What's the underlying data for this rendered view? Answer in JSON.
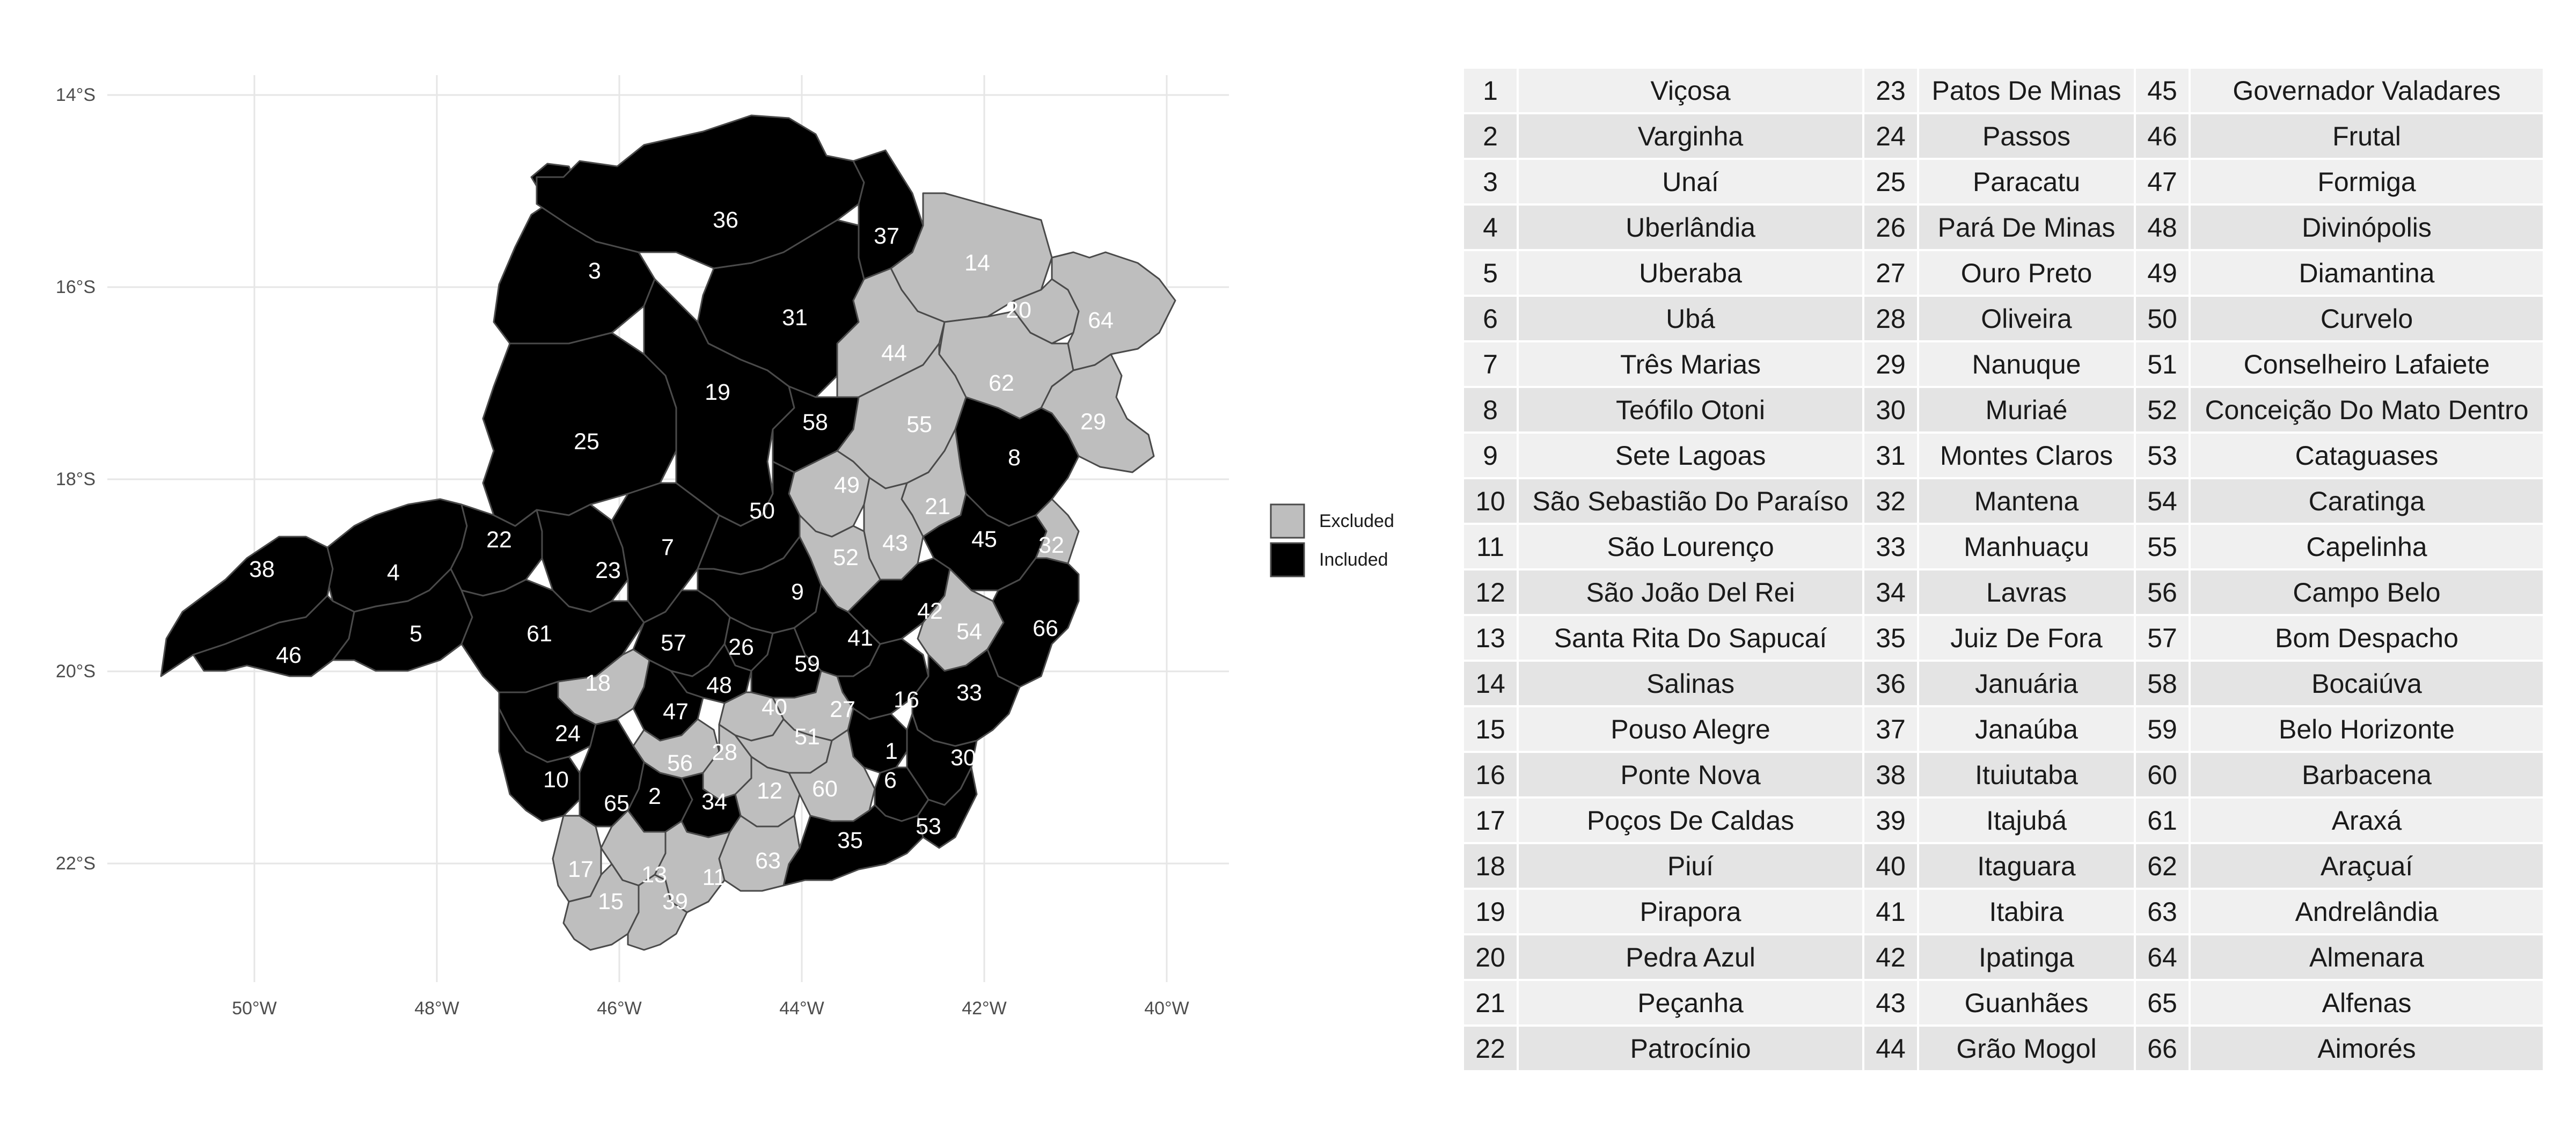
{
  "map": {
    "y_axis_labels": [
      "14°S",
      "16°S",
      "18°S",
      "20°S",
      "22°S"
    ],
    "x_axis_labels": [
      "50°W",
      "48°W",
      "46°W",
      "44°W",
      "42°W",
      "40°W"
    ],
    "legend": [
      {
        "label": "Excluded",
        "color": "#bebebe"
      },
      {
        "label": "Included",
        "color": "#000000"
      }
    ],
    "included_regions": [
      "1",
      "2",
      "3",
      "4",
      "5",
      "6",
      "7",
      "8",
      "9",
      "10",
      "16",
      "19",
      "22",
      "23",
      "24",
      "25",
      "26",
      "30",
      "31",
      "33",
      "34",
      "35",
      "36",
      "37",
      "38",
      "41",
      "42",
      "45",
      "46",
      "47",
      "48",
      "50",
      "53",
      "57",
      "58",
      "59",
      "61",
      "65",
      "66"
    ],
    "excluded_regions": [
      "11",
      "12",
      "13",
      "14",
      "15",
      "17",
      "18",
      "20",
      "21",
      "27",
      "28",
      "29",
      "32",
      "39",
      "40",
      "43",
      "44",
      "49",
      "51",
      "52",
      "54",
      "55",
      "56",
      "60",
      "62",
      "63",
      "64"
    ]
  },
  "table": {
    "rows": [
      [
        "1",
        "Viçosa",
        "23",
        "Patos De Minas",
        "45",
        "Governador Valadares"
      ],
      [
        "2",
        "Varginha",
        "24",
        "Passos",
        "46",
        "Frutal"
      ],
      [
        "3",
        "Unaí",
        "25",
        "Paracatu",
        "47",
        "Formiga"
      ],
      [
        "4",
        "Uberlândia",
        "26",
        "Pará De Minas",
        "48",
        "Divinópolis"
      ],
      [
        "5",
        "Uberaba",
        "27",
        "Ouro Preto",
        "49",
        "Diamantina"
      ],
      [
        "6",
        "Ubá",
        "28",
        "Oliveira",
        "50",
        "Curvelo"
      ],
      [
        "7",
        "Três Marias",
        "29",
        "Nanuque",
        "51",
        "Conselheiro Lafaiete"
      ],
      [
        "8",
        "Teófilo Otoni",
        "30",
        "Muriaé",
        "52",
        "Conceição Do Mato Dentro"
      ],
      [
        "9",
        "Sete Lagoas",
        "31",
        "Montes Claros",
        "53",
        "Cataguases"
      ],
      [
        "10",
        "São Sebastião Do Paraíso",
        "32",
        "Mantena",
        "54",
        "Caratinga"
      ],
      [
        "11",
        "São Lourenço",
        "33",
        "Manhuaçu",
        "55",
        "Capelinha"
      ],
      [
        "12",
        "São João Del Rei",
        "34",
        "Lavras",
        "56",
        "Campo Belo"
      ],
      [
        "13",
        "Santa Rita Do Sapucaí",
        "35",
        "Juiz De Fora",
        "57",
        "Bom Despacho"
      ],
      [
        "14",
        "Salinas",
        "36",
        "Januária",
        "58",
        "Bocaiúva"
      ],
      [
        "15",
        "Pouso Alegre",
        "37",
        "Janaúba",
        "59",
        "Belo Horizonte"
      ],
      [
        "16",
        "Ponte Nova",
        "38",
        "Ituiutaba",
        "60",
        "Barbacena"
      ],
      [
        "17",
        "Poços De Caldas",
        "39",
        "Itajubá",
        "61",
        "Araxá"
      ],
      [
        "18",
        "Piuí",
        "40",
        "Itaguara",
        "62",
        "Araçuaí"
      ],
      [
        "19",
        "Pirapora",
        "41",
        "Itabira",
        "63",
        "Andrelândia"
      ],
      [
        "20",
        "Pedra Azul",
        "42",
        "Ipatinga",
        "64",
        "Almenara"
      ],
      [
        "21",
        "Peçanha",
        "43",
        "Guanhães",
        "65",
        "Alfenas"
      ],
      [
        "22",
        "Patrocínio",
        "44",
        "Grão Mogol",
        "66",
        "Aimorés"
      ]
    ]
  }
}
